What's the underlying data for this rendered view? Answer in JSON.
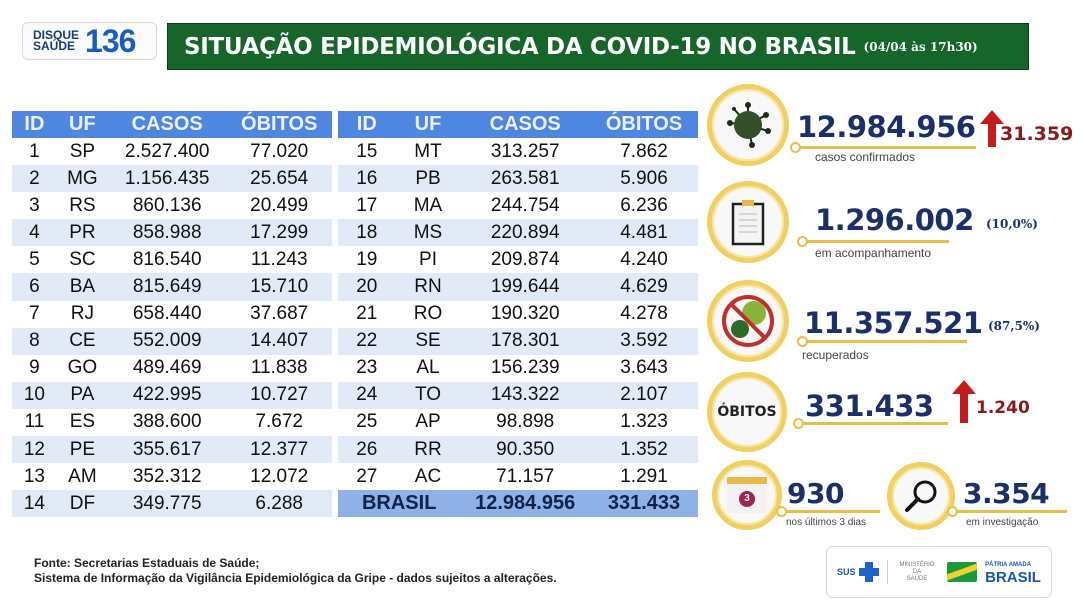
{
  "header": {
    "disque_line1": "DISQUE",
    "disque_line2": "SAÚDE",
    "disque_number": "136",
    "title": "SITUAÇÃO EPIDEMIOLÓGICA DA COVID-19 NO BRASIL",
    "date": "(04/04 às 17h30)"
  },
  "table": {
    "columns": [
      "ID",
      "UF",
      "CASOS",
      "ÓBITOS"
    ],
    "rows_left": [
      [
        "1",
        "SP",
        "2.527.400",
        "77.020"
      ],
      [
        "2",
        "MG",
        "1.156.435",
        "25.654"
      ],
      [
        "3",
        "RS",
        "860.136",
        "20.499"
      ],
      [
        "4",
        "PR",
        "858.988",
        "17.299"
      ],
      [
        "5",
        "SC",
        "816.540",
        "11.243"
      ],
      [
        "6",
        "BA",
        "815.649",
        "15.710"
      ],
      [
        "7",
        "RJ",
        "658.440",
        "37.687"
      ],
      [
        "8",
        "CE",
        "552.009",
        "14.407"
      ],
      [
        "9",
        "GO",
        "489.469",
        "11.838"
      ],
      [
        "10",
        "PA",
        "422.995",
        "10.727"
      ],
      [
        "11",
        "ES",
        "388.600",
        "7.672"
      ],
      [
        "12",
        "PE",
        "355.617",
        "12.377"
      ],
      [
        "13",
        "AM",
        "352.312",
        "12.072"
      ],
      [
        "14",
        "DF",
        "349.775",
        "6.288"
      ]
    ],
    "rows_right": [
      [
        "15",
        "MT",
        "313.257",
        "7.862"
      ],
      [
        "16",
        "PB",
        "263.581",
        "5.906"
      ],
      [
        "17",
        "MA",
        "244.754",
        "6.236"
      ],
      [
        "18",
        "MS",
        "220.894",
        "4.481"
      ],
      [
        "19",
        "PI",
        "209.874",
        "4.240"
      ],
      [
        "20",
        "RN",
        "199.644",
        "4.629"
      ],
      [
        "21",
        "RO",
        "190.320",
        "4.278"
      ],
      [
        "22",
        "SE",
        "178.301",
        "3.592"
      ],
      [
        "23",
        "AL",
        "156.239",
        "3.643"
      ],
      [
        "24",
        "TO",
        "143.322",
        "2.107"
      ],
      [
        "25",
        "AP",
        "98.898",
        "1.323"
      ],
      [
        "26",
        "RR",
        "90.350",
        "1.352"
      ],
      [
        "27",
        "AC",
        "71.157",
        "1.291"
      ]
    ],
    "total": {
      "label": "BRASIL",
      "casos": "12.984.956",
      "obitos": "331.433"
    }
  },
  "stats": {
    "confirmed": {
      "value": "12.984.956",
      "delta": "31.359",
      "label": "casos confirmados",
      "icon": "virus-icon"
    },
    "monitoring": {
      "value": "1.296.002",
      "pct": "(10,0%)",
      "label": "em acompanhamento",
      "icon": "clipboard-icon"
    },
    "recovered": {
      "value": "11.357.521",
      "pct": "(87,5%)",
      "label": "recuperados",
      "icon": "no-virus-icon"
    },
    "deaths": {
      "badge": "ÓBITOS",
      "value": "331.433",
      "delta": "1.240"
    },
    "last3days": {
      "value": "930",
      "label": "nos últimos 3 dias",
      "calendar_num": "3",
      "icon": "calendar-icon"
    },
    "investigation": {
      "value": "3.354",
      "label": "em investigação",
      "icon": "magnifier-icon"
    }
  },
  "colors": {
    "title_green": "#16652a",
    "table_header": "#4f86e0",
    "stat_blue": "#1b2f6b",
    "delta_red": "#8a1a1a",
    "ring_yellow": "#f0d060"
  },
  "footer": {
    "source_line1": "Fonte: Secretarias Estaduais de Saúde;",
    "source_line2": "Sistema de Informação da Vigilância Epidemiológica da Gripe - dados sujeitos a alterações.",
    "logo_sus": "SUS",
    "logo_ministry_1": "MINISTÉRIO DA",
    "logo_ministry_2": "SAÚDE",
    "logo_patria": "PÁTRIA AMADA",
    "logo_brasil": "BRASIL"
  }
}
